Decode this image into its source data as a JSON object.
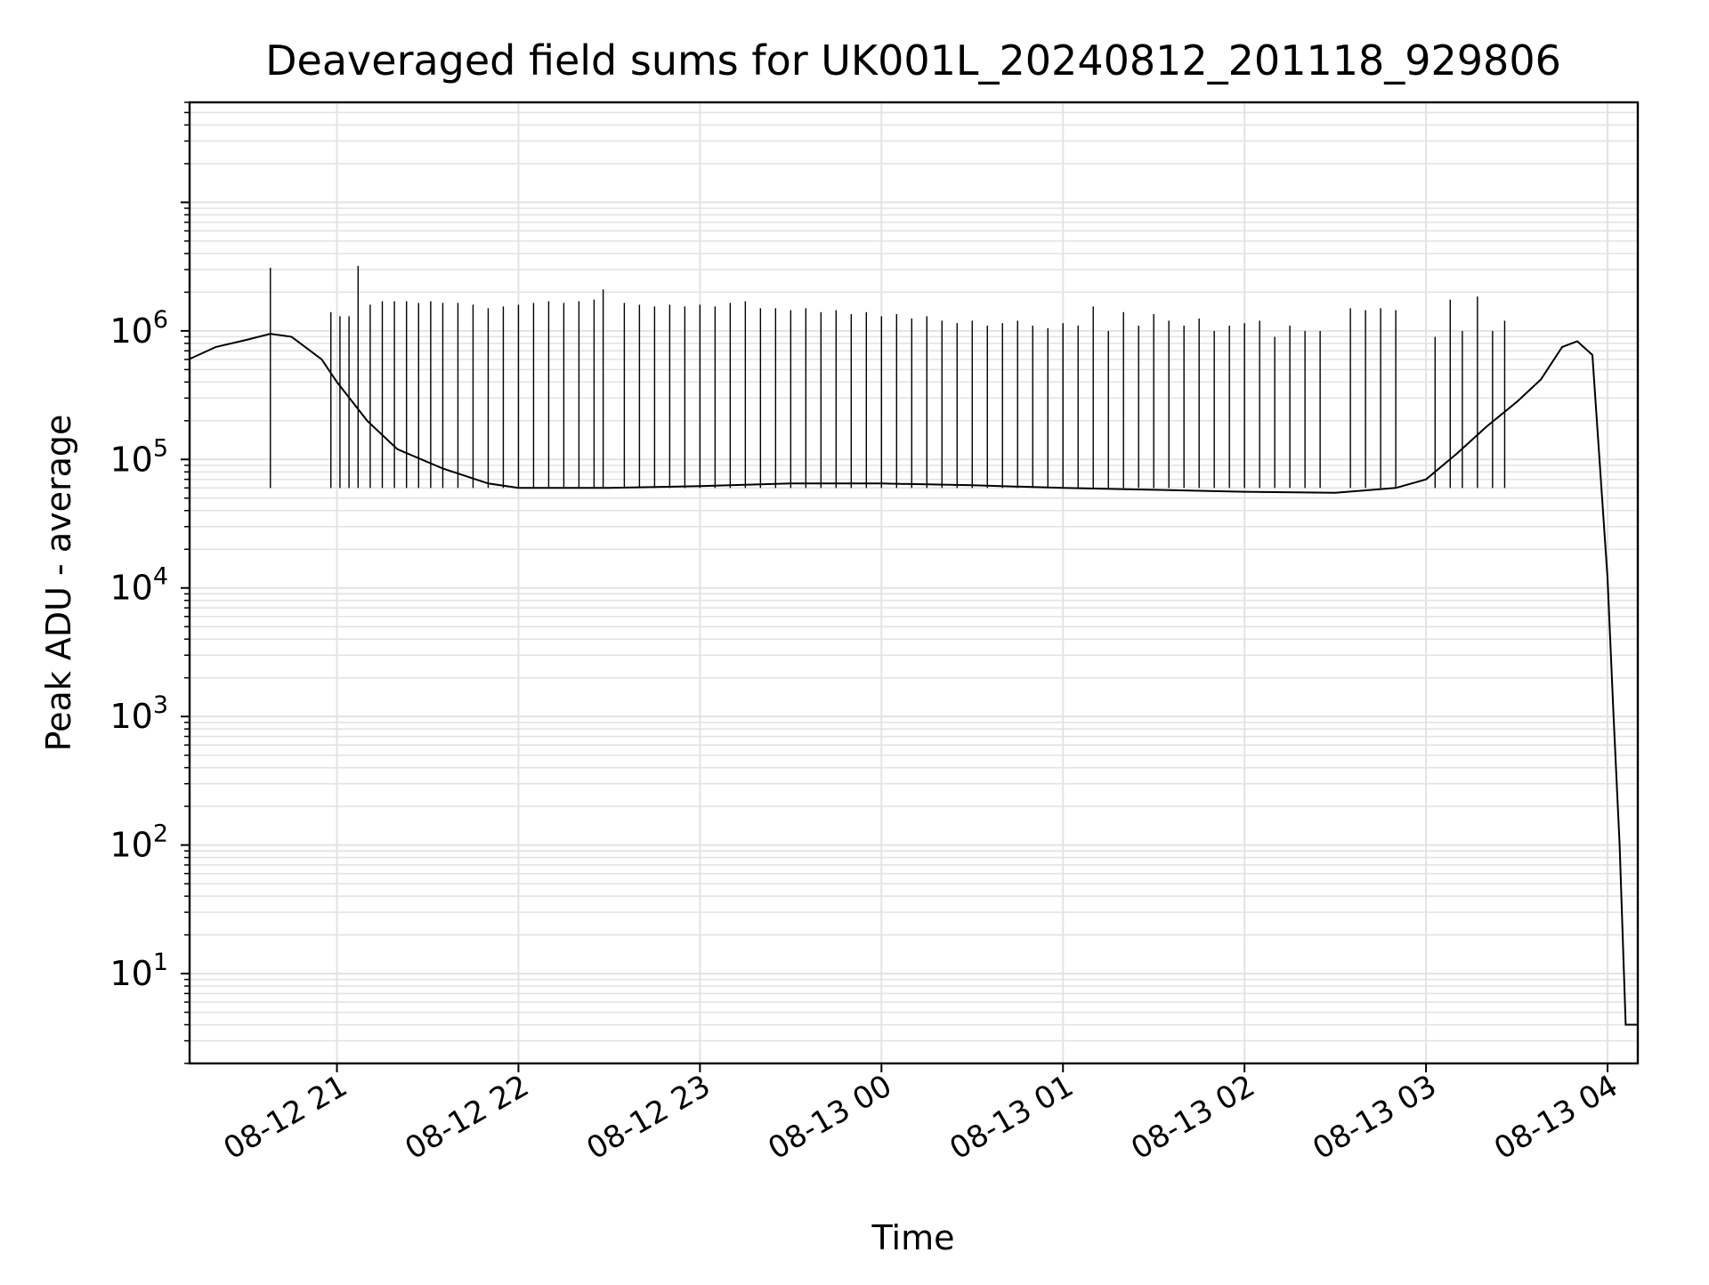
{
  "chart_data": {
    "type": "line",
    "title": "Deaveraged field sums for UK001L_20240812_201118_929806",
    "xlabel": "Time",
    "ylabel": "Peak ADU - average",
    "y_scale": "log",
    "ylim": [
      2,
      60000000
    ],
    "xlim": [
      "2024-08-12 20:11:18",
      "2024-08-13 04:10:00"
    ],
    "x_tick_labels": [
      "08-12 21",
      "08-12 22",
      "08-12 23",
      "08-13 00",
      "08-13 01",
      "08-13 02",
      "08-13 03",
      "08-13 04"
    ],
    "x_ticks": [
      "2024-08-12 21:00",
      "2024-08-12 22:00",
      "2024-08-12 23:00",
      "2024-08-13 00:00",
      "2024-08-13 01:00",
      "2024-08-13 02:00",
      "2024-08-13 03:00",
      "2024-08-13 04:00"
    ],
    "y_tick_exponents": [
      "1",
      "2",
      "3",
      "4",
      "5",
      "6"
    ],
    "y_tick_base": "10",
    "grid": true,
    "line_color": "#000000",
    "grid_color": "#e3e3e3",
    "series": [
      {
        "x": [
          "2024-08-12 20:11",
          "2024-08-12 20:20",
          "2024-08-12 20:30",
          "2024-08-12 20:38",
          "2024-08-12 20:45",
          "2024-08-12 20:55",
          "2024-08-12 21:00",
          "2024-08-12 21:10",
          "2024-08-12 21:20",
          "2024-08-12 21:35",
          "2024-08-12 21:50",
          "2024-08-12 22:00",
          "2024-08-12 22:30",
          "2024-08-12 23:00",
          "2024-08-12 23:30",
          "2024-08-13 00:00",
          "2024-08-13 00:30",
          "2024-08-13 01:00",
          "2024-08-13 01:30",
          "2024-08-13 02:00",
          "2024-08-13 02:30",
          "2024-08-13 02:50",
          "2024-08-13 03:00",
          "2024-08-13 03:10",
          "2024-08-13 03:20",
          "2024-08-13 03:30",
          "2024-08-13 03:38",
          "2024-08-13 03:45",
          "2024-08-13 03:50",
          "2024-08-13 03:55",
          "2024-08-13 04:00",
          "2024-08-13 04:02",
          "2024-08-13 04:04",
          "2024-08-13 04:05",
          "2024-08-13 04:06",
          "2024-08-13 04:10"
        ],
        "values": [
          600000,
          750000,
          850000,
          950000,
          900000,
          600000,
          400000,
          200000,
          120000,
          85000,
          65000,
          60000,
          60000,
          62000,
          65000,
          65000,
          63000,
          60000,
          58000,
          56000,
          55000,
          60000,
          70000,
          110000,
          180000,
          280000,
          420000,
          750000,
          830000,
          650000,
          12000,
          1000,
          100,
          20,
          4,
          4
        ]
      }
    ],
    "spikes": {
      "x": [
        "2024-08-12 20:38",
        "2024-08-12 20:58",
        "2024-08-12 21:01",
        "2024-08-12 21:04",
        "2024-08-12 21:07",
        "2024-08-12 21:11",
        "2024-08-12 21:15",
        "2024-08-12 21:19",
        "2024-08-12 21:23",
        "2024-08-12 21:27",
        "2024-08-12 21:31",
        "2024-08-12 21:35",
        "2024-08-12 21:40",
        "2024-08-12 21:45",
        "2024-08-12 21:50",
        "2024-08-12 21:55",
        "2024-08-12 22:00",
        "2024-08-12 22:05",
        "2024-08-12 22:10",
        "2024-08-12 22:15",
        "2024-08-12 22:20",
        "2024-08-12 22:25",
        "2024-08-12 22:28",
        "2024-08-12 22:35",
        "2024-08-12 22:40",
        "2024-08-12 22:45",
        "2024-08-12 22:50",
        "2024-08-12 22:55",
        "2024-08-12 23:00",
        "2024-08-12 23:05",
        "2024-08-12 23:10",
        "2024-08-12 23:15",
        "2024-08-12 23:20",
        "2024-08-12 23:25",
        "2024-08-12 23:30",
        "2024-08-12 23:35",
        "2024-08-12 23:40",
        "2024-08-12 23:45",
        "2024-08-12 23:50",
        "2024-08-12 23:55",
        "2024-08-13 00:00",
        "2024-08-13 00:05",
        "2024-08-13 00:10",
        "2024-08-13 00:15",
        "2024-08-13 00:20",
        "2024-08-13 00:25",
        "2024-08-13 00:30",
        "2024-08-13 00:35",
        "2024-08-13 00:40",
        "2024-08-13 00:45",
        "2024-08-13 00:50",
        "2024-08-13 00:55",
        "2024-08-13 01:00",
        "2024-08-13 01:05",
        "2024-08-13 01:10",
        "2024-08-13 01:15",
        "2024-08-13 01:20",
        "2024-08-13 01:25",
        "2024-08-13 01:30",
        "2024-08-13 01:35",
        "2024-08-13 01:40",
        "2024-08-13 01:45",
        "2024-08-13 01:50",
        "2024-08-13 01:55",
        "2024-08-13 02:00",
        "2024-08-13 02:05",
        "2024-08-13 02:10",
        "2024-08-13 02:15",
        "2024-08-13 02:20",
        "2024-08-13 02:25",
        "2024-08-13 02:35",
        "2024-08-13 02:40",
        "2024-08-13 02:45",
        "2024-08-13 02:50",
        "2024-08-13 03:03",
        "2024-08-13 03:08",
        "2024-08-13 03:12",
        "2024-08-13 03:17",
        "2024-08-13 03:22",
        "2024-08-13 03:26"
      ],
      "values": [
        3100000,
        1400000,
        1300000,
        1300000,
        3200000,
        1600000,
        1700000,
        1700000,
        1700000,
        1650000,
        1700000,
        1650000,
        1650000,
        1600000,
        1500000,
        1550000,
        1600000,
        1650000,
        1700000,
        1650000,
        1700000,
        1750000,
        2100000,
        1650000,
        1600000,
        1550000,
        1600000,
        1550000,
        1600000,
        1550000,
        1650000,
        1700000,
        1500000,
        1500000,
        1450000,
        1500000,
        1400000,
        1450000,
        1350000,
        1400000,
        1300000,
        1350000,
        1250000,
        1300000,
        1200000,
        1150000,
        1200000,
        1100000,
        1150000,
        1200000,
        1100000,
        1050000,
        1150000,
        1100000,
        1550000,
        1000000,
        1400000,
        1100000,
        1350000,
        1200000,
        1100000,
        1250000,
        1000000,
        1100000,
        1150000,
        1200000,
        900000,
        1100000,
        1000000,
        1000000,
        1500000,
        1450000,
        1500000,
        1450000,
        900000,
        1750000,
        1000000,
        1850000,
        1000000,
        1200000
      ]
    }
  }
}
